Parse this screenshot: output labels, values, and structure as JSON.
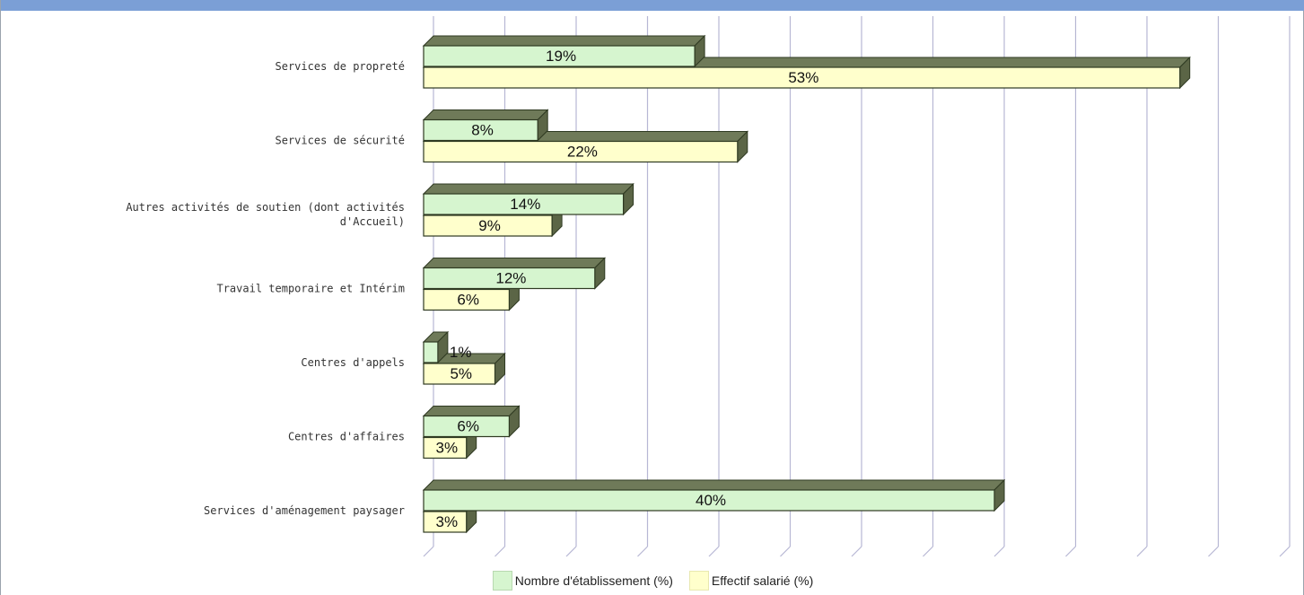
{
  "title": "",
  "colors": {
    "header": "#7b9fd6",
    "series_green_front": "#d6f5cf",
    "series_yellow_front": "#ffffcc",
    "bar_top": "#6f7a59",
    "bar_side": "#5b6546",
    "grid": "#b7b7d4"
  },
  "chart_data": {
    "type": "bar",
    "orientation": "horizontal",
    "categories": [
      "Services de propreté",
      "Services de sécurité",
      "Autres activités de soutien (dont activités d'Accueil)",
      "Travail temporaire et Intérim",
      "Centres d'appels",
      "Centres d'affaires",
      "Services d'aménagement paysager"
    ],
    "category_lines": [
      [
        "Services de propreté"
      ],
      [
        "Services de sécurité"
      ],
      [
        "Autres activités de soutien (dont activités",
        "d'Accueil)"
      ],
      [
        "Travail temporaire et Intérim"
      ],
      [
        "Centres d'appels"
      ],
      [
        "Centres d'affaires"
      ],
      [
        "Services d'aménagement paysager"
      ]
    ],
    "series": [
      {
        "name": "Nombre d'établissement (%)",
        "values": [
          19,
          8,
          14,
          12,
          1,
          6,
          40
        ],
        "labels": [
          "19%",
          "8%",
          "14%",
          "12%",
          "1%",
          "6%",
          "40%"
        ]
      },
      {
        "name": "Effectif salarié (%)",
        "values": [
          53,
          22,
          9,
          6,
          5,
          3,
          3
        ],
        "labels": [
          "53%",
          "22%",
          "9%",
          "6%",
          "5%",
          "3%",
          "3%"
        ]
      }
    ],
    "xlim": [
      0,
      60
    ],
    "grid": true,
    "legend_position": "bottom",
    "style": "3d"
  }
}
